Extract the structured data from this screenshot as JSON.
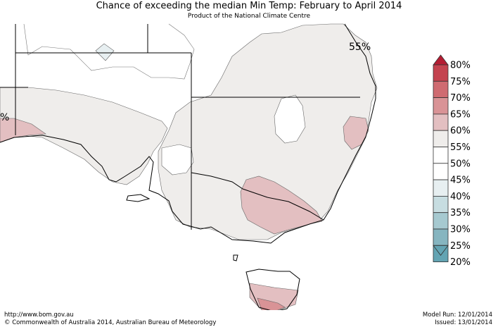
{
  "title": "Chance of exceeding the median Min Temp: February to April 2014",
  "subtitle": "Product of the National Climate Centre",
  "contour_labels": [
    "55%",
    "%"
  ],
  "legend": {
    "bins": [
      {
        "label": "80%",
        "color": "#b41d33"
      },
      {
        "label": "75%",
        "color": "#c4434f"
      },
      {
        "label": "70%",
        "color": "#cf6b71"
      },
      {
        "label": "65%",
        "color": "#d99396"
      },
      {
        "label": "60%",
        "color": "#e3bfc1"
      },
      {
        "label": "55%",
        "color": "#efedeb"
      },
      {
        "label": "50%",
        "color": "#ffffff"
      },
      {
        "label": "45%",
        "color": "#ffffff"
      },
      {
        "label": "40%",
        "color": "#e7eff1"
      },
      {
        "label": "35%",
        "color": "#c7dde1"
      },
      {
        "label": "30%",
        "color": "#a6c9d0"
      },
      {
        "label": "25%",
        "color": "#86b5c0"
      },
      {
        "label": "20%",
        "color": "#63a4b3"
      }
    ]
  },
  "colors": {
    "above_55": "#efedeb",
    "above_60": "#e3bfc1",
    "above_65": "#d99396",
    "below_45": "#e7eff1",
    "coast": "#000000"
  },
  "footer": {
    "url": "http://www.bom.gov.au",
    "copyright": "©  Commonwealth of Australia 2014, Australian Bureau of Meteorology",
    "model_run": "Model Run: 12/01/2014",
    "issued": "Issued: 13/01/2014"
  }
}
